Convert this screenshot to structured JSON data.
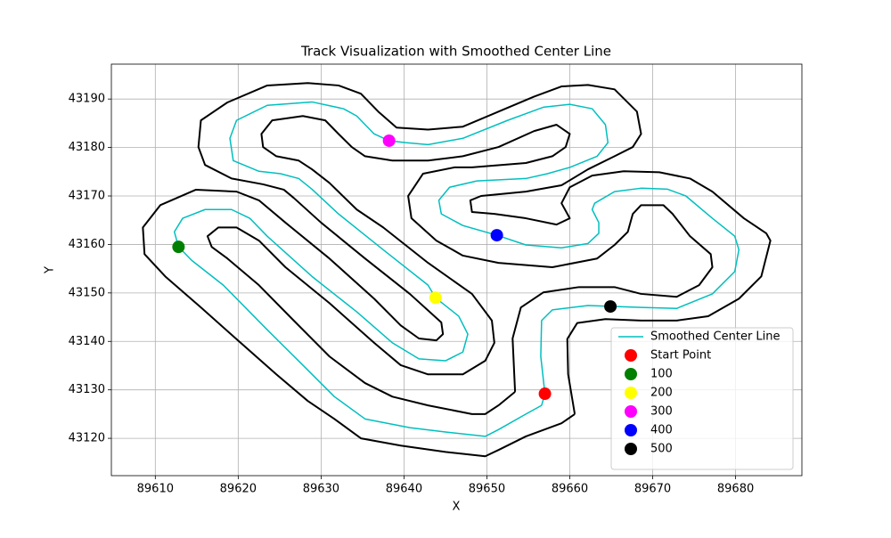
{
  "chart_data": {
    "type": "line",
    "title": "Track Visualization with Smoothed Center Line",
    "xlabel": "X",
    "ylabel": "Y",
    "xlim": [
      89604.7,
      89688.0
    ],
    "ylim": [
      43112.3,
      43197.2
    ],
    "xticks": [
      89610,
      89620,
      89630,
      89640,
      89650,
      89660,
      89670,
      89680
    ],
    "yticks": [
      43120,
      43130,
      43140,
      43150,
      43160,
      43170,
      43180,
      43190
    ],
    "grid": true,
    "legend": "lower right",
    "series": [
      {
        "type": "line",
        "color": "#000000",
        "x": [
          89660.6,
          89659.8,
          89659.7,
          89660.9,
          89664.3,
          89668.6,
          89672.9,
          89676.7,
          89680.4,
          89683.1,
          89684.2,
          89683.7,
          89681.0,
          89677.2,
          89674.5,
          89670.8,
          89666.5,
          89662.7,
          89660.0,
          89659.0,
          89660.0,
          89658.4,
          89654.7,
          89650.9,
          89648.2,
          89648.0,
          89649.3,
          89654.7,
          89659.0,
          89662.2,
          89665.4,
          89667.6,
          89668.6,
          89668.1,
          89665.4,
          89662.2,
          89659.0,
          89655.7,
          89651.4,
          89647.1,
          89642.9,
          89639.1,
          89636.9,
          89634.8,
          89632.1,
          89628.4,
          89623.5,
          89618.7,
          89615.5,
          89615.2,
          89616.0,
          89619.2,
          89623.0,
          89625.5,
          89626.7,
          89630.0,
          89635.3,
          89640.7,
          89644.5,
          89644.7,
          89643.9,
          89641.8,
          89639.6,
          89636.4,
          89631.0,
          89625.7,
          89622.5,
          89619.8,
          89614.9,
          89610.6,
          89608.5,
          89608.7,
          89611.2,
          89615.5,
          89620.3,
          89624.6,
          89628.4,
          89631.6,
          89634.8,
          89639.6,
          89645.0,
          89649.8,
          89651.4,
          89654.7,
          89659.0,
          89660.6
        ],
        "y": [
          43125.0,
          43133.2,
          43140.5,
          43143.8,
          43144.6,
          43144.3,
          43144.3,
          43145.2,
          43148.8,
          43153.4,
          43160.8,
          43162.3,
          43165.4,
          43170.9,
          43173.6,
          43174.9,
          43175.1,
          43174.2,
          43171.8,
          43168.5,
          43165.4,
          43164.1,
          43165.4,
          43166.3,
          43166.7,
          43169.1,
          43170.0,
          43170.9,
          43172.2,
          43175.5,
          43178.2,
          43180.1,
          43182.8,
          43187.4,
          43192.0,
          43192.9,
          43192.6,
          43190.5,
          43187.4,
          43184.3,
          43183.7,
          43184.1,
          43187.4,
          43191.1,
          43192.8,
          43193.3,
          43192.8,
          43189.3,
          43185.6,
          43180.1,
          43176.4,
          43173.6,
          43172.4,
          43171.3,
          43169.6,
          43164.5,
          43157.1,
          43149.8,
          43143.9,
          43141.5,
          43140.2,
          43140.6,
          43143.3,
          43148.8,
          43157.1,
          43164.5,
          43169.1,
          43170.9,
          43171.3,
          43168.1,
          43163.5,
          43158.0,
          43153.4,
          43147.0,
          43139.7,
          43133.2,
          43127.7,
          43124.0,
          43120.0,
          43118.5,
          43117.2,
          43116.3,
          43117.6,
          43120.4,
          43123.1,
          43125.0
        ]
      },
      {
        "type": "line",
        "color": "#000000",
        "x": [
          89653.4,
          89653.1,
          89654.1,
          89656.8,
          89661.1,
          89665.4,
          89668.6,
          89672.9,
          89675.6,
          89677.2,
          89677.0,
          89674.5,
          89672.4,
          89671.3,
          89668.6,
          89667.6,
          89667.0,
          89665.4,
          89663.3,
          89657.9,
          89651.4,
          89647.1,
          89643.9,
          89640.9,
          89640.5,
          89642.3,
          89646.1,
          89648.2,
          89654.7,
          89657.9,
          89659.5,
          89660.0,
          89658.4,
          89655.7,
          89651.4,
          89647.1,
          89642.9,
          89638.6,
          89635.3,
          89633.7,
          89632.1,
          89630.5,
          89627.8,
          89624.1,
          89622.8,
          89623.0,
          89624.6,
          89627.3,
          89628.9,
          89631.0,
          89634.3,
          89637.5,
          89642.9,
          89648.2,
          89650.6,
          89650.9,
          89649.8,
          89647.1,
          89642.9,
          89639.6,
          89636.4,
          89631.0,
          89625.7,
          89622.5,
          89619.8,
          89617.6,
          89616.3,
          89616.8,
          89618.7,
          89622.5,
          89626.7,
          89631.0,
          89635.3,
          89638.6,
          89642.9,
          89648.2,
          89649.8,
          89651.4,
          89653.4
        ],
        "y": [
          43129.6,
          43140.6,
          43147.0,
          43150.1,
          43151.2,
          43151.2,
          43149.8,
          43149.2,
          43151.6,
          43155.3,
          43158.0,
          43161.7,
          43166.3,
          43168.1,
          43168.1,
          43166.3,
          43162.6,
          43159.9,
          43157.1,
          43155.3,
          43156.2,
          43157.7,
          43160.8,
          43165.4,
          43170.0,
          43174.6,
          43175.9,
          43175.9,
          43176.8,
          43178.2,
          43180.1,
          43182.8,
          43184.7,
          43183.4,
          43180.1,
          43178.2,
          43177.3,
          43177.3,
          43178.2,
          43180.1,
          43182.8,
          43185.6,
          43186.5,
          43185.6,
          43182.8,
          43180.1,
          43178.2,
          43177.3,
          43175.5,
          43172.7,
          43167.2,
          43163.5,
          43156.2,
          43149.8,
          43144.3,
          43139.7,
          43136.0,
          43133.2,
          43133.2,
          43135.1,
          43139.7,
          43147.9,
          43155.3,
          43160.8,
          43163.5,
          43163.5,
          43161.7,
          43159.5,
          43157.1,
          43151.6,
          43144.3,
          43136.9,
          43131.4,
          43128.6,
          43126.8,
          43125.0,
          43125.0,
          43126.8,
          43129.6
        ]
      },
      {
        "type": "line",
        "name": "Smoothed Center Line",
        "color": "#00bfbf",
        "x": [
          89657.0,
          89656.5,
          89656.6,
          89657.9,
          89662.2,
          89668.6,
          89672.9,
          89677.2,
          89679.9,
          89680.4,
          89679.9,
          89677.2,
          89674.0,
          89671.8,
          89668.6,
          89665.4,
          89663.0,
          89662.7,
          89663.5,
          89663.5,
          89662.2,
          89659.0,
          89654.7,
          89651.2,
          89647.1,
          89644.5,
          89644.2,
          89645.5,
          89648.8,
          89654.7,
          89657.3,
          89660.0,
          89663.3,
          89664.6,
          89664.3,
          89662.7,
          89660.0,
          89656.8,
          89652.5,
          89647.1,
          89642.9,
          89640.2,
          89638.2,
          89636.4,
          89634.3,
          89632.7,
          89628.9,
          89623.5,
          89619.8,
          89619.0,
          89619.4,
          89622.5,
          89625.1,
          89627.3,
          89628.9,
          89632.1,
          89637.5,
          89642.9,
          89643.8,
          89646.6,
          89647.7,
          89647.1,
          89645.0,
          89641.8,
          89638.6,
          89634.3,
          89628.9,
          89623.5,
          89621.4,
          89619.2,
          89616.0,
          89613.3,
          89612.3,
          89612.8,
          89614.4,
          89618.2,
          89623.5,
          89627.8,
          89631.6,
          89635.3,
          89640.7,
          89645.0,
          89649.8,
          89651.4,
          89654.7,
          89656.6,
          89657.0
        ],
        "y": [
          43129.2,
          43136.9,
          43144.3,
          43146.5,
          43147.4,
          43147.0,
          43146.8,
          43149.8,
          43154.4,
          43158.9,
          43161.7,
          43165.4,
          43170.0,
          43171.4,
          43171.6,
          43170.9,
          43168.5,
          43167.2,
          43164.5,
          43162.3,
          43160.2,
          43159.3,
          43159.9,
          43161.9,
          43163.9,
          43166.3,
          43169.1,
          43171.8,
          43173.1,
          43173.6,
          43174.6,
          43175.9,
          43178.2,
          43181.0,
          43184.7,
          43188.0,
          43188.9,
          43188.3,
          43185.6,
          43181.9,
          43180.6,
          43181.0,
          43181.4,
          43182.8,
          43186.5,
          43188.0,
          43189.4,
          43188.7,
          43185.6,
          43181.9,
          43177.3,
          43175.1,
          43174.6,
          43173.6,
          43171.4,
          43166.3,
          43158.9,
          43151.6,
          43149.0,
          43145.2,
          43141.5,
          43137.8,
          43136.0,
          43136.4,
          43139.7,
          43146.1,
          43153.4,
          43161.7,
          43165.4,
          43167.2,
          43167.2,
          43165.4,
          43162.6,
          43159.5,
          43156.7,
          43151.6,
          43142.4,
          43135.1,
          43128.6,
          43124.0,
          43122.2,
          43121.3,
          43120.4,
          43121.8,
          43125.0,
          43126.8,
          43129.2
        ]
      },
      {
        "type": "scatter",
        "name": "Start Point",
        "color": "#ff0000",
        "x": [
          89657.0
        ],
        "y": [
          43129.2
        ]
      },
      {
        "type": "scatter",
        "name": "100",
        "color": "#008000",
        "x": [
          89612.8
        ],
        "y": [
          43159.5
        ]
      },
      {
        "type": "scatter",
        "name": "200",
        "color": "#ffff00",
        "x": [
          89643.8
        ],
        "y": [
          43149.0
        ]
      },
      {
        "type": "scatter",
        "name": "300",
        "color": "#ff00ff",
        "x": [
          89638.2
        ],
        "y": [
          43181.4
        ]
      },
      {
        "type": "scatter",
        "name": "400",
        "color": "#0000ff",
        "x": [
          89651.2
        ],
        "y": [
          43161.9
        ]
      },
      {
        "type": "scatter",
        "name": "500",
        "color": "#000000",
        "x": [
          89664.9
        ],
        "y": [
          43147.2
        ]
      }
    ]
  }
}
